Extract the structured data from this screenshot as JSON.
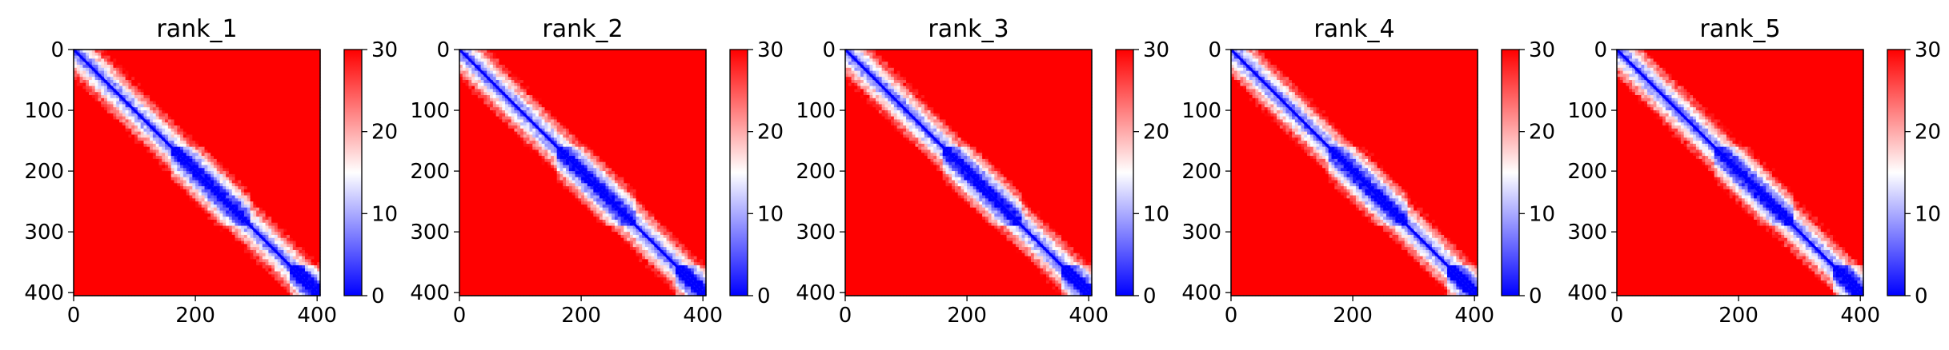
{
  "chart_data": {
    "type": "heatmap",
    "panels": [
      {
        "title": "rank_1",
        "domain_breaks": [
          160,
          290,
          355
        ]
      },
      {
        "title": "rank_2",
        "domain_breaks": [
          160,
          290,
          355
        ]
      },
      {
        "title": "rank_3",
        "domain_breaks": [
          160,
          290,
          355
        ]
      },
      {
        "title": "rank_4",
        "domain_breaks": [
          160,
          290,
          355
        ]
      },
      {
        "title": "rank_5",
        "domain_breaks": [
          160,
          290,
          355
        ]
      }
    ],
    "matrix_size": 405,
    "x_ticks": [
      "0",
      "200",
      "400"
    ],
    "x_tick_values": [
      0,
      200,
      400
    ],
    "y_ticks": [
      "0",
      "100",
      "200",
      "300",
      "400"
    ],
    "y_tick_values": [
      0,
      100,
      200,
      300,
      400
    ],
    "colorbar": {
      "ticks": [
        "0",
        "10",
        "20",
        "30"
      ],
      "tick_values": [
        0,
        10,
        20,
        30
      ],
      "range": [
        0,
        30
      ],
      "colormap": "bwr",
      "low_color": "#0000ff",
      "mid_color": "#ffffff",
      "high_color": "#ff0000"
    },
    "xlabel": "",
    "ylabel": ""
  }
}
